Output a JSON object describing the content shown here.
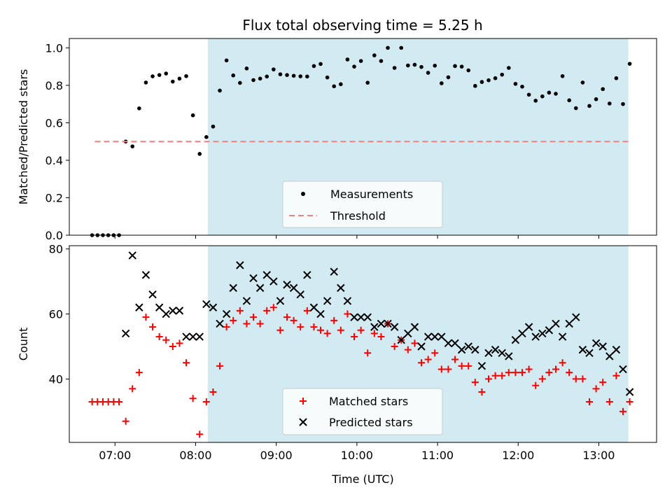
{
  "title": "Flux total observing time = 5.25 h",
  "chart_data": [
    {
      "type": "scatter",
      "ylabel": "Matched/Predicted stars",
      "xlabel": "",
      "ylim": [
        0.0,
        1.05
      ],
      "xlim": [
        "06:26",
        "13:43"
      ],
      "y_ticks": [
        "0.0",
        "0.2",
        "0.4",
        "0.6",
        "0.8",
        "1.0"
      ],
      "y_tick_values": [
        0.0,
        0.2,
        0.4,
        0.6,
        0.8,
        1.0
      ],
      "shaded_interval": [
        "08:09",
        "13:22"
      ],
      "shade_color": "#add8e6",
      "legend_position": "lower center",
      "series": [
        {
          "name": "Measurements",
          "marker": "dot",
          "color": "#000000",
          "points": [
            [
              "06:43",
              0.0
            ],
            [
              "06:47",
              0.0
            ],
            [
              "06:51",
              0.0
            ],
            [
              "06:55",
              0.0
            ],
            [
              "06:59",
              0.0
            ],
            [
              "07:03",
              0.0
            ],
            [
              "07:08",
              0.5
            ],
            [
              "07:13",
              0.474
            ],
            [
              "07:18",
              0.677
            ],
            [
              "07:23",
              0.815
            ],
            [
              "07:28",
              0.848
            ],
            [
              "07:33",
              0.855
            ],
            [
              "07:38",
              0.863
            ],
            [
              "07:43",
              0.82
            ],
            [
              "07:48",
              0.836
            ],
            [
              "07:53",
              0.849
            ],
            [
              "07:58",
              0.64
            ],
            [
              "08:03",
              0.434
            ],
            [
              "08:08",
              0.524
            ],
            [
              "08:13",
              0.58
            ],
            [
              "08:18",
              0.772
            ],
            [
              "08:23",
              0.933
            ],
            [
              "08:28",
              0.853
            ],
            [
              "08:33",
              0.813
            ],
            [
              "08:38",
              0.89
            ],
            [
              "08:43",
              0.828
            ],
            [
              "08:48",
              0.836
            ],
            [
              "08:53",
              0.847
            ],
            [
              "08:58",
              0.885
            ],
            [
              "09:03",
              0.859
            ],
            [
              "09:08",
              0.855
            ],
            [
              "09:13",
              0.851
            ],
            [
              "09:18",
              0.848
            ],
            [
              "09:23",
              0.847
            ],
            [
              "09:28",
              0.903
            ],
            [
              "09:33",
              0.914
            ],
            [
              "09:38",
              0.842
            ],
            [
              "09:43",
              0.795
            ],
            [
              "09:48",
              0.806
            ],
            [
              "09:53",
              0.938
            ],
            [
              "09:58",
              0.9
            ],
            [
              "10:03",
              0.93
            ],
            [
              "10:08",
              0.814
            ],
            [
              "10:13",
              0.96
            ],
            [
              "10:18",
              0.93
            ],
            [
              "10:23",
              1.0
            ],
            [
              "10:28",
              0.893
            ],
            [
              "10:33",
              1.0
            ],
            [
              "10:38",
              0.906
            ],
            [
              "10:43",
              0.91
            ],
            [
              "10:48",
              0.898
            ],
            [
              "10:53",
              0.867
            ],
            [
              "10:58",
              0.905
            ],
            [
              "11:03",
              0.811
            ],
            [
              "11:08",
              0.843
            ],
            [
              "11:13",
              0.903
            ],
            [
              "11:18",
              0.9
            ],
            [
              "11:23",
              0.88
            ],
            [
              "11:28",
              0.797
            ],
            [
              "11:33",
              0.818
            ],
            [
              "11:38",
              0.827
            ],
            [
              "11:43",
              0.838
            ],
            [
              "11:48",
              0.857
            ],
            [
              "11:53",
              0.893
            ],
            [
              "11:58",
              0.808
            ],
            [
              "12:03",
              0.793
            ],
            [
              "12:08",
              0.75
            ],
            [
              "12:13",
              0.718
            ],
            [
              "12:18",
              0.741
            ],
            [
              "12:23",
              0.761
            ],
            [
              "12:28",
              0.755
            ],
            [
              "12:33",
              0.849
            ],
            [
              "12:38",
              0.72
            ],
            [
              "12:43",
              0.678
            ],
            [
              "12:48",
              0.815
            ],
            [
              "12:53",
              0.69
            ],
            [
              "12:58",
              0.726
            ],
            [
              "13:03",
              0.78
            ],
            [
              "13:08",
              0.703
            ],
            [
              "13:13",
              0.838
            ],
            [
              "13:18",
              0.7
            ],
            [
              "13:23",
              0.915
            ]
          ]
        },
        {
          "name": "Threshold",
          "marker": "dashed-line",
          "color": "#f08080",
          "points": [
            [
              "06:45",
              0.5
            ],
            [
              "13:22",
              0.5
            ]
          ]
        }
      ]
    },
    {
      "type": "scatter",
      "ylabel": "Count",
      "xlabel": "Time (UTC)",
      "ylim": [
        20.5,
        81.0
      ],
      "xlim": [
        "06:26",
        "13:43"
      ],
      "y_ticks": [
        "40",
        "60",
        "80"
      ],
      "y_tick_values": [
        40,
        60,
        80
      ],
      "x_ticks": [
        "07:00",
        "08:00",
        "09:00",
        "10:00",
        "11:00",
        "12:00",
        "13:00"
      ],
      "shaded_interval": [
        "08:09",
        "13:22"
      ],
      "shade_color": "#add8e6",
      "legend_position": "lower center",
      "series": [
        {
          "name": "Matched stars",
          "marker": "plus",
          "color": "#ff0000",
          "points": [
            [
              "06:43",
              33
            ],
            [
              "06:47",
              33
            ],
            [
              "06:51",
              33
            ],
            [
              "06:55",
              33
            ],
            [
              "06:59",
              33
            ],
            [
              "07:03",
              33
            ],
            [
              "07:08",
              27
            ],
            [
              "07:13",
              37
            ],
            [
              "07:18",
              42
            ],
            [
              "07:23",
              59
            ],
            [
              "07:28",
              56
            ],
            [
              "07:33",
              53
            ],
            [
              "07:38",
              52
            ],
            [
              "07:43",
              50
            ],
            [
              "07:48",
              51
            ],
            [
              "07:53",
              45
            ],
            [
              "07:58",
              34
            ],
            [
              "08:03",
              23
            ],
            [
              "08:08",
              33
            ],
            [
              "08:13",
              36
            ],
            [
              "08:18",
              44
            ],
            [
              "08:23",
              56
            ],
            [
              "08:28",
              58
            ],
            [
              "08:33",
              61
            ],
            [
              "08:38",
              57
            ],
            [
              "08:43",
              59
            ],
            [
              "08:48",
              57
            ],
            [
              "08:53",
              61
            ],
            [
              "08:58",
              62
            ],
            [
              "09:03",
              55
            ],
            [
              "09:08",
              59
            ],
            [
              "09:13",
              58
            ],
            [
              "09:18",
              56
            ],
            [
              "09:23",
              61
            ],
            [
              "09:28",
              56
            ],
            [
              "09:33",
              55
            ],
            [
              "09:38",
              54
            ],
            [
              "09:43",
              58
            ],
            [
              "09:48",
              55
            ],
            [
              "09:53",
              60
            ],
            [
              "09:58",
              53
            ],
            [
              "10:03",
              55
            ],
            [
              "10:08",
              48
            ],
            [
              "10:13",
              54
            ],
            [
              "10:18",
              53
            ],
            [
              "10:23",
              57
            ],
            [
              "10:28",
              50
            ],
            [
              "10:33",
              52
            ],
            [
              "10:38",
              49
            ],
            [
              "10:43",
              51
            ],
            [
              "10:48",
              45
            ],
            [
              "10:53",
              46
            ],
            [
              "10:58",
              48
            ],
            [
              "11:03",
              43
            ],
            [
              "11:08",
              43
            ],
            [
              "11:13",
              46
            ],
            [
              "11:18",
              44
            ],
            [
              "11:23",
              44
            ],
            [
              "11:28",
              39
            ],
            [
              "11:33",
              36
            ],
            [
              "11:38",
              40
            ],
            [
              "11:43",
              41
            ],
            [
              "11:48",
              41
            ],
            [
              "11:53",
              42
            ],
            [
              "11:58",
              42
            ],
            [
              "12:03",
              42
            ],
            [
              "12:08",
              43
            ],
            [
              "12:13",
              38
            ],
            [
              "12:18",
              40
            ],
            [
              "12:23",
              42
            ],
            [
              "12:28",
              43
            ],
            [
              "12:33",
              45
            ],
            [
              "12:38",
              42
            ],
            [
              "12:43",
              40
            ],
            [
              "12:48",
              40
            ],
            [
              "12:53",
              33
            ],
            [
              "12:58",
              37
            ],
            [
              "13:03",
              39
            ],
            [
              "13:08",
              33
            ],
            [
              "13:13",
              41
            ],
            [
              "13:18",
              30
            ],
            [
              "13:23",
              33
            ]
          ]
        },
        {
          "name": "Predicted stars",
          "marker": "x",
          "color": "#000000",
          "points": [
            [
              "07:08",
              54
            ],
            [
              "07:13",
              78
            ],
            [
              "07:18",
              62
            ],
            [
              "07:23",
              72
            ],
            [
              "07:28",
              66
            ],
            [
              "07:33",
              62
            ],
            [
              "07:38",
              60
            ],
            [
              "07:43",
              61
            ],
            [
              "07:48",
              61
            ],
            [
              "07:53",
              53
            ],
            [
              "07:58",
              53
            ],
            [
              "08:03",
              53
            ],
            [
              "08:08",
              63
            ],
            [
              "08:13",
              62
            ],
            [
              "08:18",
              57
            ],
            [
              "08:23",
              60
            ],
            [
              "08:28",
              68
            ],
            [
              "08:33",
              75
            ],
            [
              "08:38",
              64
            ],
            [
              "08:43",
              71
            ],
            [
              "08:48",
              68
            ],
            [
              "08:53",
              72
            ],
            [
              "08:58",
              70
            ],
            [
              "09:03",
              64
            ],
            [
              "09:08",
              69
            ],
            [
              "09:13",
              68
            ],
            [
              "09:18",
              66
            ],
            [
              "09:23",
              72
            ],
            [
              "09:28",
              62
            ],
            [
              "09:33",
              60
            ],
            [
              "09:38",
              64
            ],
            [
              "09:43",
              73
            ],
            [
              "09:48",
              68
            ],
            [
              "09:53",
              64
            ],
            [
              "09:58",
              59
            ],
            [
              "10:03",
              59
            ],
            [
              "10:08",
              59
            ],
            [
              "10:13",
              56
            ],
            [
              "10:18",
              57
            ],
            [
              "10:23",
              57
            ],
            [
              "10:28",
              56
            ],
            [
              "10:33",
              52
            ],
            [
              "10:38",
              54
            ],
            [
              "10:43",
              56
            ],
            [
              "10:48",
              50
            ],
            [
              "10:53",
              53
            ],
            [
              "10:58",
              53
            ],
            [
              "11:03",
              53
            ],
            [
              "11:08",
              51
            ],
            [
              "11:13",
              51
            ],
            [
              "11:18",
              49
            ],
            [
              "11:23",
              50
            ],
            [
              "11:28",
              49
            ],
            [
              "11:33",
              44
            ],
            [
              "11:38",
              48
            ],
            [
              "11:43",
              49
            ],
            [
              "11:48",
              48
            ],
            [
              "11:53",
              47
            ],
            [
              "11:58",
              52
            ],
            [
              "12:03",
              54
            ],
            [
              "12:08",
              56
            ],
            [
              "12:13",
              53
            ],
            [
              "12:18",
              54
            ],
            [
              "12:23",
              55
            ],
            [
              "12:28",
              57
            ],
            [
              "12:33",
              53
            ],
            [
              "12:38",
              57
            ],
            [
              "12:43",
              59
            ],
            [
              "12:48",
              49
            ],
            [
              "12:53",
              48
            ],
            [
              "12:58",
              51
            ],
            [
              "13:03",
              50
            ],
            [
              "13:08",
              47
            ],
            [
              "13:13",
              49
            ],
            [
              "13:18",
              43
            ],
            [
              "13:23",
              36
            ]
          ]
        }
      ]
    }
  ]
}
